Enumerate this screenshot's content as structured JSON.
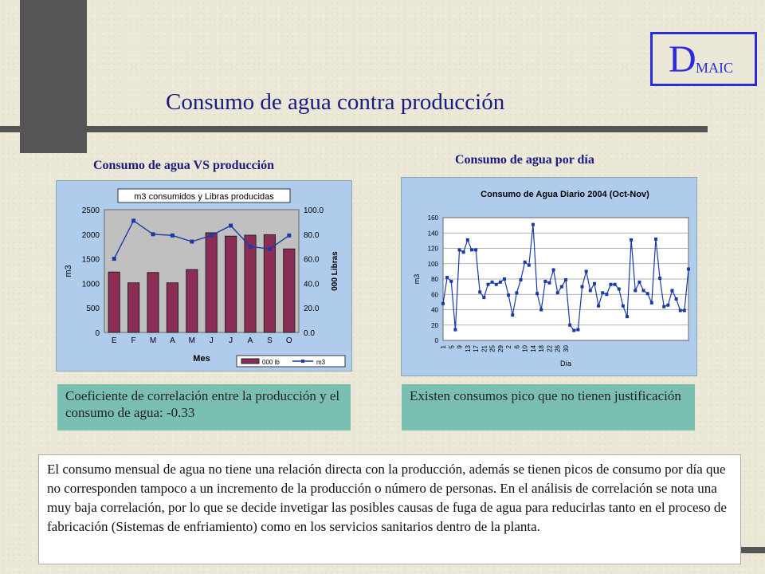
{
  "title": "Consumo  de agua contra producción",
  "logo": {
    "big": "D",
    "small": "MAIC"
  },
  "left_heading": "Consumo de agua VS producción",
  "right_heading": "Consumo de agua por día",
  "left_note": "Coeficiente de correlación entre la producción y el consumo de agua: -0.33",
  "right_note": "Existen consumos pico que no tienen justificación",
  "conclusion": "El consumo mensual de agua no tiene una relación directa con la producción, además se tienen picos de consumo por día que no corresponden tampoco a un incremento de la producción o número de personas. En el análisis de correlación se nota una muy baja correlación, por lo que se decide invetigar las posibles causas de fuga de agua para reducirlas tanto en el proceso de fabricación (Sistemas de enfriamiento) como en los servicios sanitarios dentro de la planta.",
  "colors": {
    "bar": "#8b2d55",
    "line": "#1a3aa8",
    "plot_left": "#c0c0c0",
    "plot_right": "#ffffff",
    "frame": "#b0ccec",
    "teal": "#7bbfb2",
    "accent": "#2a2ae0"
  },
  "chart_data": [
    {
      "type": "bar",
      "title": "m3 consumidos y Libras producidas",
      "xlabel": "Mes",
      "ylabel": "m3",
      "y2label": "000 Libras",
      "categories": [
        "E",
        "F",
        "M",
        "A",
        "M",
        "J",
        "J",
        "A",
        "S",
        "O"
      ],
      "ylim": [
        0,
        2500
      ],
      "yticks": [
        0,
        500,
        1000,
        1500,
        2000,
        2500
      ],
      "y2lim": [
        0.0,
        100.0
      ],
      "y2ticks": [
        "0.0",
        "20.0",
        "40.0",
        "60.0",
        "80.0",
        "100.0"
      ],
      "series": [
        {
          "name": "000 lb",
          "type": "bar",
          "axis": "left",
          "values": [
            1230,
            1010,
            1220,
            1010,
            1280,
            2030,
            1960,
            1980,
            1990,
            1700
          ]
        },
        {
          "name": "m3",
          "type": "line",
          "axis": "right",
          "values": [
            60,
            91,
            80,
            79,
            74,
            79,
            87,
            70,
            68,
            79
          ]
        }
      ],
      "legend": "bottom-right",
      "grid": false
    },
    {
      "type": "line",
      "title": "Consumo de Agua Diario 2004 (Oct-Nov)",
      "xlabel": "Día",
      "ylabel": "m3",
      "ylim": [
        0,
        160
      ],
      "yticks": [
        0,
        20,
        40,
        60,
        80,
        100,
        120,
        140,
        160
      ],
      "xticks": [
        "1",
        "5",
        "9",
        "13",
        "17",
        "21",
        "25",
        "29",
        "2",
        "6",
        "10",
        "14",
        "18",
        "22",
        "26",
        "30"
      ],
      "xticks_every": 2,
      "values": [
        48,
        82,
        77,
        14,
        118,
        115,
        131,
        118,
        118,
        63,
        56,
        73,
        76,
        73,
        76,
        80,
        59,
        33,
        62,
        79,
        102,
        98,
        151,
        61,
        40,
        77,
        75,
        92,
        62,
        70,
        79,
        20,
        13,
        14,
        70,
        90,
        65,
        74,
        45,
        62,
        60,
        73,
        73,
        67,
        45,
        31,
        131,
        65,
        76,
        65,
        61,
        49,
        132,
        81,
        44,
        46,
        65,
        54,
        39,
        39,
        93
      ],
      "grid": true
    }
  ]
}
